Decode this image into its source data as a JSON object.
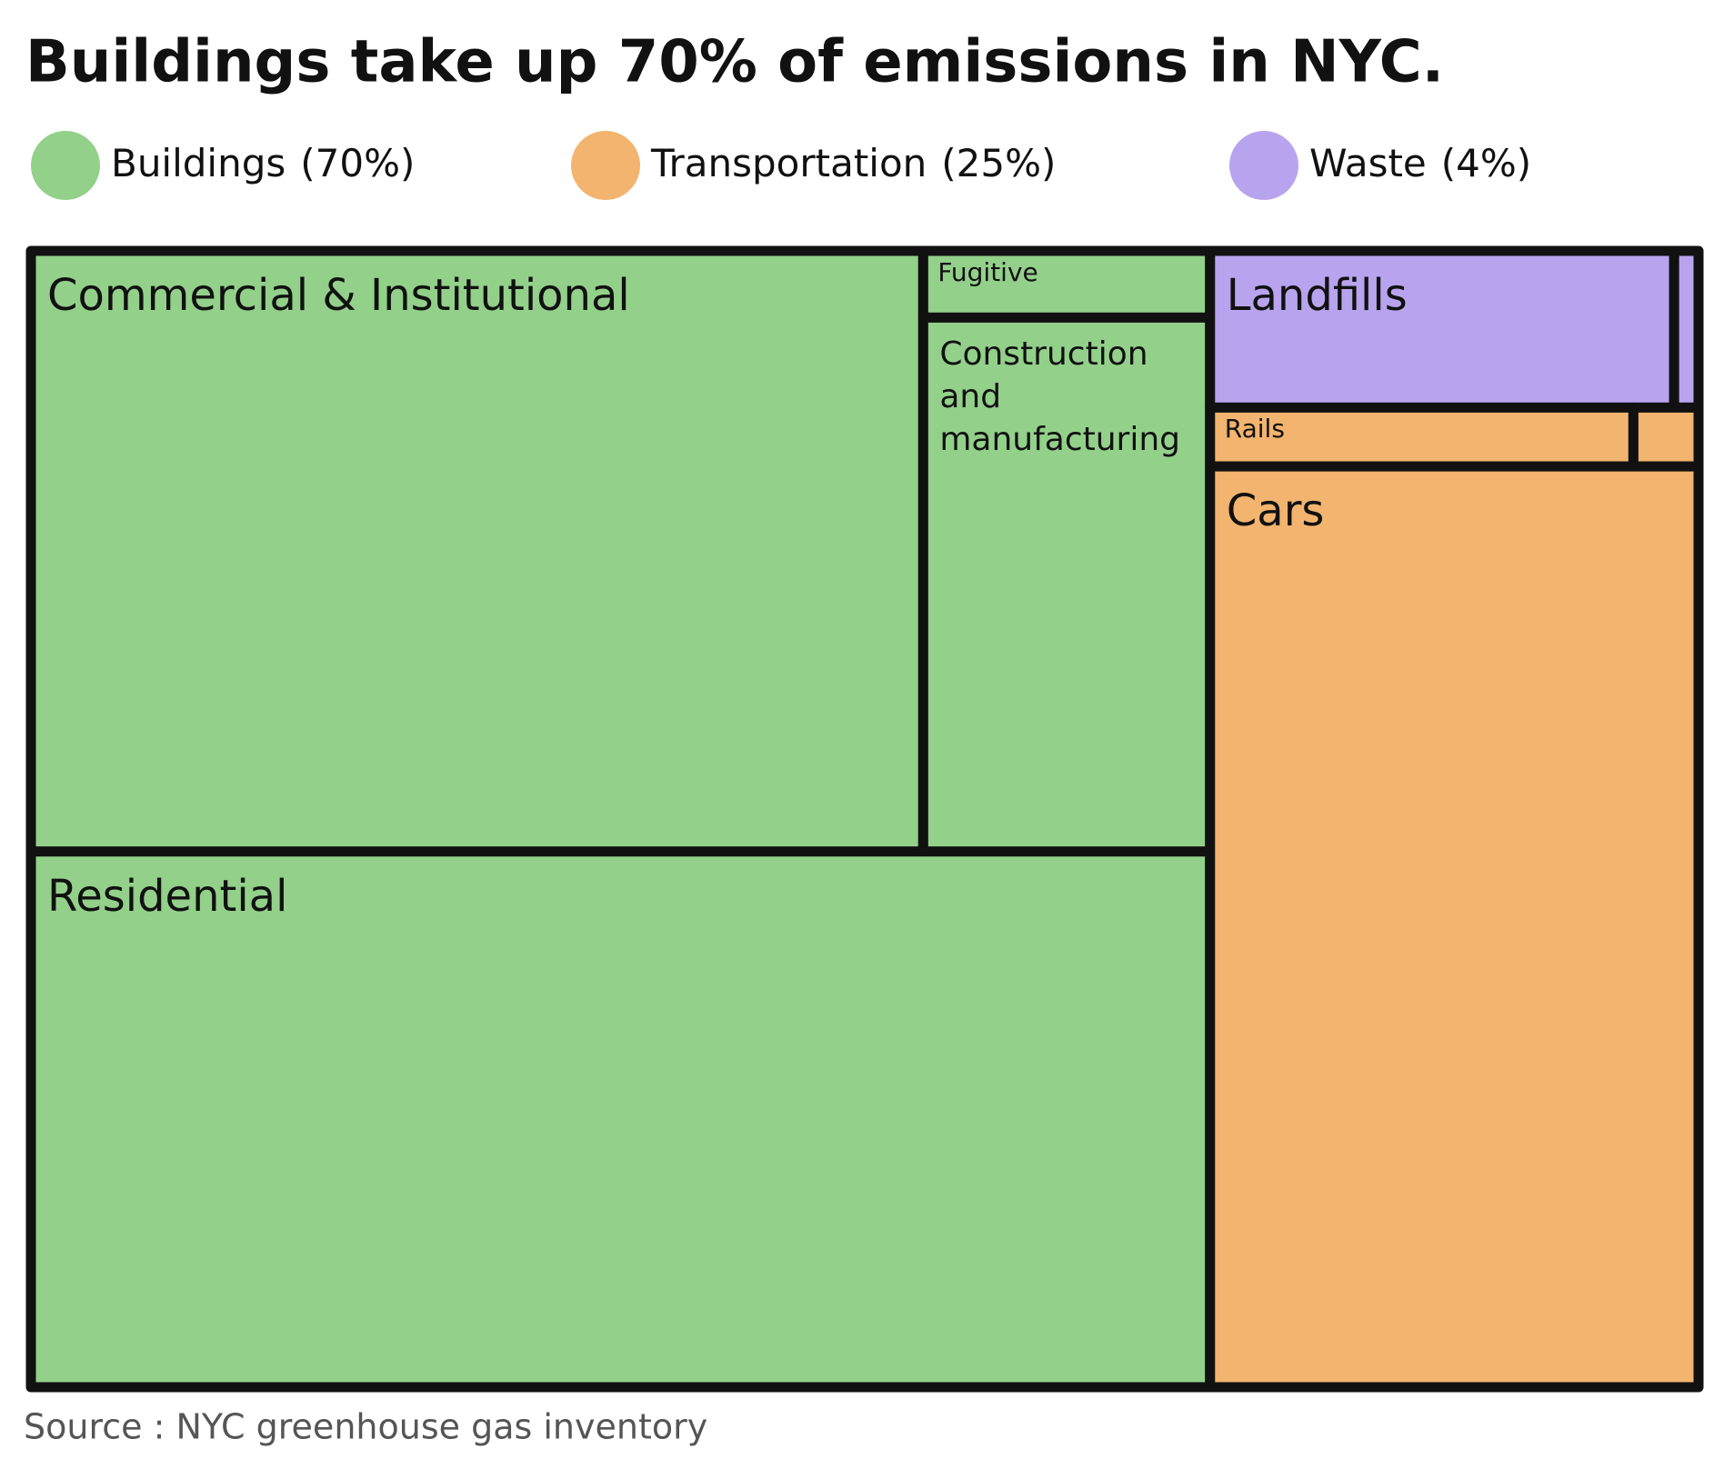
{
  "chart_data": {
    "type": "treemap",
    "title": "Buildings take up 70% of emissions in NYC.",
    "source": "Source : NYC greenhouse gas inventory",
    "groups": [
      {
        "name": "Buildings",
        "value": 70,
        "value_label": "(70%)",
        "color": "#93d08a",
        "children": [
          {
            "name": "Commercial & Institutional",
            "value": 28
          },
          {
            "name": "Fugitive",
            "value": 1
          },
          {
            "name": "Construction and manufacturing",
            "value": 8
          },
          {
            "name": "Residential",
            "value": 33
          }
        ]
      },
      {
        "name": "Transportation",
        "value": 25,
        "value_label": "(25%)",
        "color": "#f2b46e",
        "children": [
          {
            "name": "Rails",
            "value": 1.3
          },
          {
            "name": null,
            "value": 0.2
          },
          {
            "name": "Cars",
            "value": 23.5
          }
        ]
      },
      {
        "name": "Waste",
        "value": 4,
        "value_label": "(4%)",
        "color": "#b8a4ee",
        "children": [
          {
            "name": "Landfills",
            "value": 3.8
          },
          {
            "name": null,
            "value": 0.2
          }
        ]
      }
    ]
  }
}
